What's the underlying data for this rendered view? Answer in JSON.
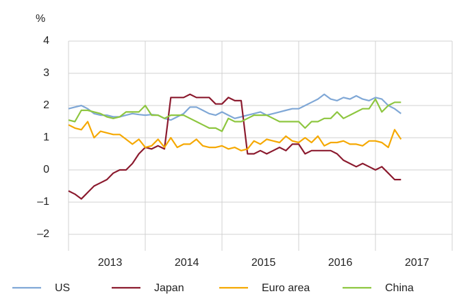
{
  "chart_data": {
    "type": "line",
    "ylabel": "%",
    "categories": [
      null,
      null,
      null,
      null,
      null,
      null,
      "2013",
      null,
      null,
      null,
      null,
      null,
      null,
      null,
      null,
      null,
      null,
      null,
      "2014",
      null,
      null,
      null,
      null,
      null,
      null,
      null,
      null,
      null,
      null,
      null,
      "2015",
      null,
      null,
      null,
      null,
      null,
      null,
      null,
      null,
      null,
      null,
      null,
      "2016",
      null,
      null,
      null,
      null,
      null,
      null,
      null,
      null,
      null,
      null,
      null,
      "2017",
      null,
      null,
      null,
      null,
      null
    ],
    "series": [
      {
        "name": "US",
        "color": "#7fa7d6",
        "values": [
          1.9,
          1.95,
          2.0,
          1.9,
          1.75,
          1.7,
          1.7,
          1.65,
          1.65,
          1.7,
          1.75,
          1.72,
          1.7,
          1.72,
          1.7,
          1.6,
          1.55,
          1.65,
          1.75,
          1.95,
          1.95,
          1.85,
          1.75,
          1.7,
          1.8,
          1.7,
          1.6,
          1.65,
          1.7,
          1.75,
          1.8,
          1.7,
          1.75,
          1.8,
          1.85,
          1.9,
          1.9,
          2.0,
          2.1,
          2.2,
          2.35,
          2.2,
          2.15,
          2.25,
          2.2,
          2.3,
          2.2,
          2.15,
          2.25,
          2.2,
          2.0,
          1.9,
          1.75,
          null,
          null,
          null,
          null,
          null,
          null,
          null
        ]
      },
      {
        "name": "Japan",
        "color": "#8b1a2e",
        "values": [
          -0.65,
          -0.75,
          -0.9,
          -0.7,
          -0.5,
          -0.4,
          -0.3,
          -0.1,
          0.0,
          0.0,
          0.2,
          0.5,
          0.7,
          0.65,
          0.75,
          0.65,
          2.25,
          2.25,
          2.25,
          2.35,
          2.25,
          2.25,
          2.25,
          2.05,
          2.05,
          2.25,
          2.15,
          2.15,
          0.5,
          0.5,
          0.6,
          0.5,
          0.6,
          0.7,
          0.6,
          0.8,
          0.8,
          0.5,
          0.6,
          0.6,
          0.6,
          0.6,
          0.5,
          0.3,
          0.2,
          0.1,
          0.2,
          0.1,
          0.0,
          0.1,
          -0.1,
          -0.3,
          -0.3,
          null,
          null,
          null,
          null,
          null,
          null,
          null
        ]
      },
      {
        "name": "Euro area",
        "color": "#f5a800",
        "values": [
          1.4,
          1.3,
          1.25,
          1.5,
          1.0,
          1.2,
          1.15,
          1.1,
          1.1,
          0.95,
          0.8,
          0.95,
          0.7,
          0.75,
          0.95,
          0.7,
          1.0,
          0.7,
          0.8,
          0.8,
          0.95,
          0.75,
          0.7,
          0.7,
          0.75,
          0.65,
          0.7,
          0.6,
          0.65,
          0.9,
          0.8,
          0.95,
          0.9,
          0.85,
          1.05,
          0.9,
          0.85,
          1.0,
          0.85,
          1.05,
          0.75,
          0.85,
          0.85,
          0.9,
          0.8,
          0.8,
          0.75,
          0.9,
          0.9,
          0.85,
          0.7,
          1.25,
          0.95,
          null,
          null,
          null,
          null,
          null,
          null,
          null
        ]
      },
      {
        "name": "China",
        "color": "#8dc63f",
        "values": [
          1.55,
          1.5,
          1.85,
          1.85,
          1.8,
          1.75,
          1.65,
          1.6,
          1.65,
          1.8,
          1.8,
          1.8,
          2.0,
          1.7,
          1.7,
          1.6,
          1.7,
          1.7,
          1.7,
          1.6,
          1.5,
          1.4,
          1.3,
          1.3,
          1.2,
          1.6,
          1.5,
          1.5,
          1.6,
          1.7,
          1.7,
          1.7,
          1.6,
          1.5,
          1.5,
          1.5,
          1.5,
          1.3,
          1.5,
          1.5,
          1.6,
          1.6,
          1.8,
          1.6,
          1.7,
          1.8,
          1.9,
          1.9,
          2.2,
          1.8,
          2.0,
          2.1,
          2.1,
          null,
          null,
          null,
          null,
          null,
          null,
          null
        ]
      }
    ],
    "ylim": [
      -2,
      4
    ],
    "yticks": [
      {
        "value": -2,
        "label": "–2"
      },
      {
        "value": -1,
        "label": "–1"
      },
      0,
      1,
      2,
      3,
      4
    ],
    "grid": true,
    "legend": "bottom"
  }
}
